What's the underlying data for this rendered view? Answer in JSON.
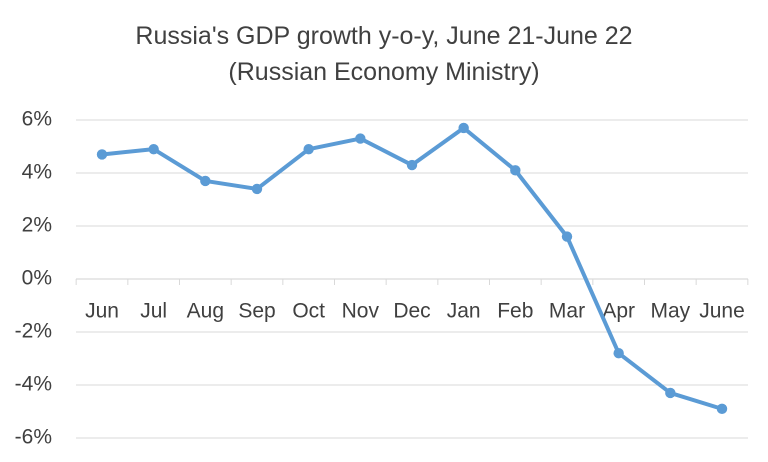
{
  "chart_data": {
    "type": "line",
    "title": "Russia's GDP growth y-o-y, June 21-June 22",
    "subtitle": "(Russian Economy Ministry)",
    "categories": [
      "Jun",
      "Jul",
      "Aug",
      "Sep",
      "Oct",
      "Nov",
      "Dec",
      "Jan",
      "Feb",
      "Mar",
      "Apr",
      "May",
      "June"
    ],
    "series": [
      {
        "values": [
          4.7,
          4.9,
          3.7,
          3.4,
          4.9,
          5.3,
          4.3,
          5.7,
          4.1,
          1.6,
          -2.8,
          -4.3,
          -4.9
        ]
      }
    ],
    "y_ticks": [
      "6%",
      "4%",
      "2%",
      "0%",
      "-2%",
      "-4%",
      "-6%"
    ],
    "y_tick_values": [
      6,
      4,
      2,
      0,
      -2,
      -4,
      -6
    ],
    "ylim": [
      -6,
      6
    ],
    "xlabel": "",
    "ylabel": "",
    "grid": true,
    "colors": {
      "line": "#5B9BD5",
      "grid": "#D9D9D9",
      "axis": "#D9D9D9",
      "text": "#404040"
    }
  }
}
